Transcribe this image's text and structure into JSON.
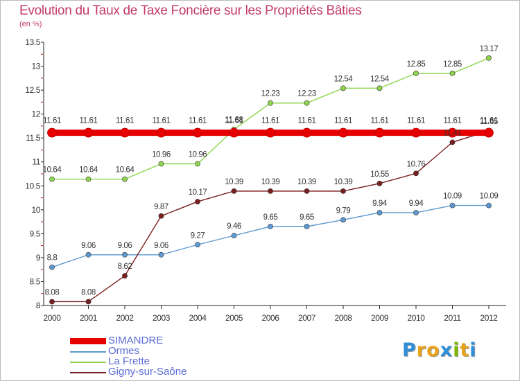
{
  "chart_data": {
    "type": "line",
    "title": "Evolution du Taux de Taxe Foncière sur les Propriétés Bâties",
    "subtitle": "(en %)",
    "xlabel": "",
    "ylabel": "(en %)",
    "ylim": [
      8,
      13.5
    ],
    "y_ticks": [
      "8",
      "8.5",
      "9",
      "9.5",
      "10",
      "10.5",
      "11",
      "11.5",
      "12",
      "12.5",
      "13",
      "13.5"
    ],
    "categories": [
      "2000",
      "2001",
      "2002",
      "2003",
      "2004",
      "2005",
      "2006",
      "2007",
      "2008",
      "2009",
      "2010",
      "2011",
      "2012"
    ],
    "series": [
      {
        "name": "SIMANDRE",
        "color": "#e60000",
        "values": [
          11.61,
          11.61,
          11.61,
          11.61,
          11.61,
          11.61,
          11.61,
          11.61,
          11.61,
          11.61,
          11.61,
          11.61,
          11.61
        ],
        "labels": [
          "11.61",
          "11.61",
          "11.61",
          "11.61",
          "11.61",
          "11.61",
          "11.61",
          "11.61",
          "11.61",
          "11.61",
          "11.61",
          "11.61",
          "11.61"
        ]
      },
      {
        "name": "Ormes",
        "color": "#5d9ad1",
        "values": [
          8.8,
          9.06,
          9.06,
          9.06,
          9.27,
          9.46,
          9.65,
          9.65,
          9.79,
          9.94,
          9.94,
          10.09,
          10.09
        ],
        "labels": [
          "8.8",
          "9.06",
          "9.06",
          "9.06",
          "9.27",
          "9.46",
          "9.65",
          "9.65",
          "9.79",
          "9.94",
          "9.94",
          "10.09",
          "10.09"
        ]
      },
      {
        "name": "La Frette",
        "color": "#8ed44e",
        "values": [
          10.64,
          10.64,
          10.64,
          10.96,
          10.96,
          11.68,
          12.23,
          12.23,
          12.54,
          12.54,
          12.85,
          12.85,
          13.17
        ],
        "labels": [
          "10.64",
          "10.64",
          "10.64",
          "10.96",
          "10.96",
          "11.68",
          "12.23",
          "12.23",
          "12.54",
          "12.54",
          "12.85",
          "12.85",
          "13.17"
        ]
      },
      {
        "name": "Gigny-sur-Saône",
        "color": "#7a1f1f",
        "values": [
          8.08,
          8.08,
          8.62,
          9.87,
          10.17,
          10.39,
          10.39,
          10.39,
          10.39,
          10.55,
          10.76,
          11.41,
          11.65
        ],
        "labels": [
          "8.08",
          "8.08",
          "8.62",
          "9.87",
          "10.17",
          "10.39",
          "10.39",
          "10.39",
          "10.39",
          "10.55",
          "10.76",
          "11.41",
          "11.65"
        ]
      }
    ],
    "legend_position": "bottom-left",
    "grid": false
  },
  "logo": {
    "letters": [
      "P",
      "r",
      "o",
      "x",
      "i",
      "t",
      "i"
    ],
    "colors": [
      "#2f8fd8",
      "#e8a21a",
      "#e8a21a",
      "#2f8fd8",
      "#7fb800",
      "#e8a21a",
      "#2f8fd8"
    ]
  }
}
